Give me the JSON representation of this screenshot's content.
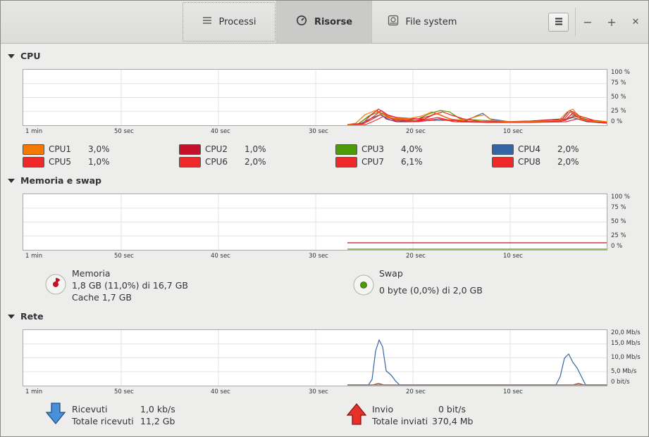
{
  "header": {
    "tabs": [
      {
        "label": "Processi"
      },
      {
        "label": "Risorse"
      },
      {
        "label": "File system"
      }
    ],
    "controls": {
      "minimize": "−",
      "maximize": "+",
      "close": "✕"
    }
  },
  "x_axis": [
    "1 min",
    "50 sec",
    "40 sec",
    "30 sec",
    "20 sec",
    "10 sec"
  ],
  "cpu": {
    "title": "CPU",
    "y_axis": [
      "100 %",
      "75 %",
      "50 %",
      "25 %",
      "0 %"
    ],
    "cores": [
      {
        "name": "CPU1",
        "value": "3,0%",
        "color": "#f57900"
      },
      {
        "name": "CPU2",
        "value": "1,0%",
        "color": "#c4102a"
      },
      {
        "name": "CPU3",
        "value": "4,0%",
        "color": "#4e9a06"
      },
      {
        "name": "CPU4",
        "value": "2,0%",
        "color": "#3465a4"
      },
      {
        "name": "CPU5",
        "value": "1,0%",
        "color": "#ef2929"
      },
      {
        "name": "CPU6",
        "value": "2,0%",
        "color": "#ef2929"
      },
      {
        "name": "CPU7",
        "value": "6,1%",
        "color": "#ef2929"
      },
      {
        "name": "CPU8",
        "value": "2,0%",
        "color": "#ef2929"
      }
    ]
  },
  "memory": {
    "title": "Memoria e swap",
    "y_axis": [
      "100 %",
      "75 %",
      "50 %",
      "25 %",
      "0 %"
    ],
    "mem": {
      "label": "Memoria",
      "usage": "1,8 GB (11,0%) di 16,7 GB",
      "cache": "Cache 1,7 GB",
      "color": "#c4102a"
    },
    "swap": {
      "label": "Swap",
      "usage": "0 byte (0,0%) di 2,0 GB",
      "color": "#4e9a06"
    }
  },
  "network": {
    "title": "Rete",
    "y_axis": [
      "20,0 Mb/s",
      "15,0 Mb/s",
      "10,0 Mb/s",
      "5,0 Mb/s",
      "0 bit/s"
    ],
    "received": {
      "label": "Ricevuti",
      "value": "1,0 kb/s",
      "total_label": "Totale ricevuti",
      "total": "11,2 Gb",
      "color": "#3465a4"
    },
    "sent": {
      "label": "Invio",
      "value": "0 bit/s",
      "total_label": "Totale inviati",
      "total": "370,4 Mb",
      "color": "#cc3300"
    }
  }
}
